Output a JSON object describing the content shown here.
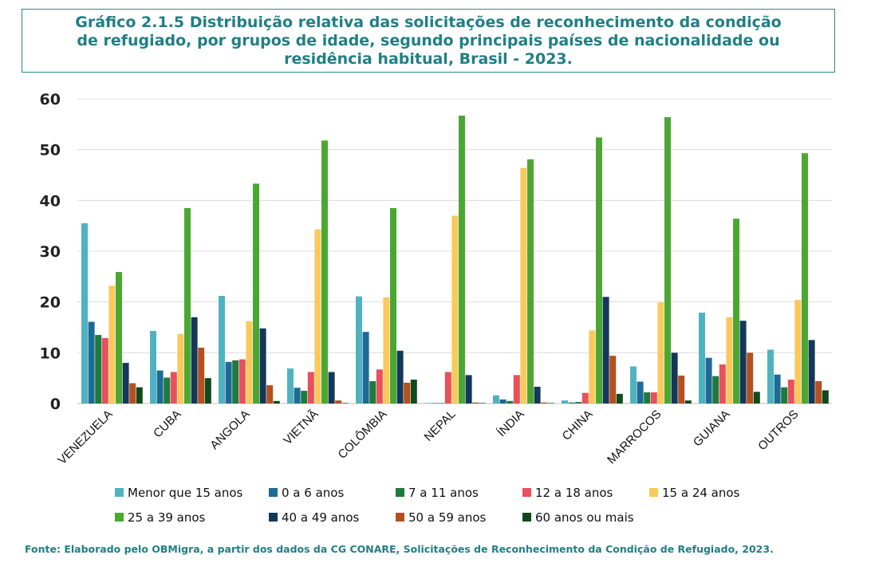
{
  "title": "Gráfico 2.1.5 Distribuição relativa das solicitações de reconhecimento da condição de refugiado, por grupos de idade, segundo principais países de nacionalidade ou residência habitual, Brasil - 2023.",
  "source": "Fonte: Elaborado pelo OBMigra, a partir dos dados da CG CONARE, Solicitações de Reconhecimento da Condição de Refugiado, 2023.",
  "chart_data": {
    "type": "bar",
    "title": "Gráfico 2.1.5 Distribuição relativa das solicitações de reconhecimento da condição de refugiado, por grupos de idade, segundo principais países de nacionalidade ou residência habitual, Brasil - 2023.",
    "xlabel": "",
    "ylabel": "",
    "ylim": [
      0,
      60
    ],
    "yticks": [
      "0",
      "10",
      "20",
      "30",
      "40",
      "50",
      "60"
    ],
    "grid": true,
    "legend_position": "bottom",
    "categories": [
      "VENEZUELA",
      "CUBA",
      "ANGOLA",
      "VIETNÃ",
      "COLÔMBIA",
      "NEPAL",
      "ÍNDIA",
      "CHINA",
      "MARROCOS",
      "GUIANA",
      "OUTROS"
    ],
    "series": [
      {
        "name": "Menor que 15 anos",
        "color": "#4fb3bf",
        "values": [
          35.5,
          14.3,
          21.2,
          6.9,
          21.1,
          0.1,
          1.6,
          0.6,
          7.3,
          17.9,
          10.6
        ]
      },
      {
        "name": "0 a 6 anos",
        "color": "#1d6a96",
        "values": [
          16.1,
          6.5,
          8.2,
          3.1,
          14.1,
          0.0,
          0.8,
          0.2,
          4.3,
          9.0,
          5.7
        ]
      },
      {
        "name": "7 a 11 anos",
        "color": "#1f7a3e",
        "values": [
          13.5,
          5.1,
          8.5,
          2.5,
          4.4,
          0.0,
          0.5,
          0.3,
          2.2,
          5.4,
          3.2
        ]
      },
      {
        "name": "12 a 18 anos",
        "color": "#e8505b",
        "values": [
          12.9,
          6.2,
          8.7,
          6.2,
          6.7,
          6.2,
          5.6,
          2.1,
          2.2,
          7.7,
          4.7
        ]
      },
      {
        "name": "15 a 24 anos",
        "color": "#f9c95c",
        "values": [
          23.2,
          13.7,
          16.2,
          34.3,
          20.9,
          37.0,
          46.4,
          14.4,
          19.9,
          17.0,
          20.4
        ]
      },
      {
        "name": "25 a 39 anos",
        "color": "#4aa832",
        "values": [
          25.9,
          38.5,
          43.3,
          51.8,
          38.5,
          56.7,
          48.1,
          52.4,
          56.4,
          36.4,
          49.3
        ]
      },
      {
        "name": "40 a 49 anos",
        "color": "#14375a",
        "values": [
          8.0,
          17.0,
          14.8,
          6.2,
          10.4,
          5.6,
          3.3,
          21.0,
          10.0,
          16.3,
          12.5
        ]
      },
      {
        "name": "50 a 59 anos",
        "color": "#b5501f",
        "values": [
          4.0,
          11.0,
          3.6,
          0.6,
          4.1,
          0.2,
          0.2,
          9.4,
          5.5,
          10.0,
          4.4
        ]
      },
      {
        "name": "60 anos ou mais",
        "color": "#0f4a1c",
        "values": [
          3.2,
          5.0,
          0.5,
          0.1,
          4.7,
          0.1,
          0.1,
          1.9,
          0.6,
          2.3,
          2.6
        ]
      }
    ]
  }
}
